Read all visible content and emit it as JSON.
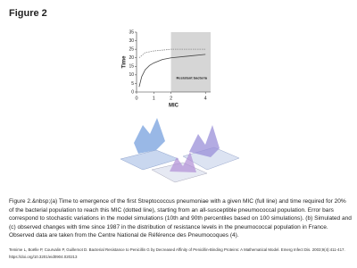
{
  "header": {
    "title": "Figure 2"
  },
  "figure": {
    "panel_a": {
      "type": "line",
      "x_label": "MIC",
      "y_label": "Time",
      "annotation": "Resistant bacteria",
      "xlim": [
        0,
        4.3
      ],
      "ylim": [
        0,
        35
      ],
      "xticks": [
        0,
        1,
        2,
        4
      ],
      "yticks": [
        0,
        5,
        10,
        15,
        20,
        25,
        30,
        35
      ],
      "shaded_xlim": [
        2,
        4.3
      ],
      "series": [
        {
          "color": "#444444",
          "dashed": false,
          "x": [
            0.15,
            0.3,
            0.5,
            0.75,
            1,
            1.5,
            2,
            3,
            4
          ],
          "values": [
            3,
            9,
            13,
            15.5,
            17,
            19,
            20,
            21,
            22
          ]
        },
        {
          "color": "#888888",
          "dashed": true,
          "x": [
            0.15,
            0.5,
            1,
            2,
            3,
            4
          ],
          "values": [
            20,
            23,
            24,
            25,
            25,
            25
          ]
        }
      ]
    }
  },
  "caption": "Figure 2.&nbsp;(a) Time to emergence of the first Streptococcus pneumoniae with a given MIC (full line) and time required for 20% of the bacterial population to reach this MIC (dotted line), starting from an all-susceptible pneumococcal population. Error bars correspond to stochastic variations in the model simulations (10th and 90th percentiles based on 100 simulations). (b) Simulated and (c) observed changes with time since 1987 in the distribution of resistance levels in the pneumococcal population in France. Observed data are taken from the Centre National de Référence des Pneumocoques (4).",
  "citation": "Temime L, Boëlle P, Courvalin P, Guillemot D. Bacterial Resistance to Penicillin G by Decreased Affinity of Penicillin-Binding Proteins: A Mathematical Model. Emerg Infect Dis. 2003;9(4):411-417. https://doi.org/10.3201/eid0904.020213"
}
